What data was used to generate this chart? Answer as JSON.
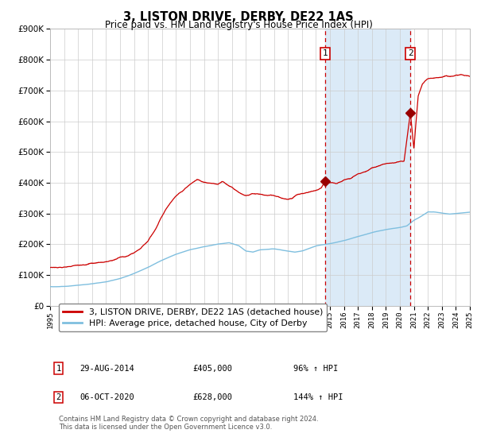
{
  "title": "3, LISTON DRIVE, DERBY, DE22 1AS",
  "subtitle": "Price paid vs. HM Land Registry's House Price Index (HPI)",
  "footer": "Contains HM Land Registry data © Crown copyright and database right 2024.\nThis data is licensed under the Open Government Licence v3.0.",
  "legend_line1": "3, LISTON DRIVE, DERBY, DE22 1AS (detached house)",
  "legend_line2": "HPI: Average price, detached house, City of Derby",
  "annotation1_date": "29-AUG-2014",
  "annotation1_price": "£405,000",
  "annotation1_hpi": "96% ↑ HPI",
  "annotation2_date": "06-OCT-2020",
  "annotation2_price": "£628,000",
  "annotation2_hpi": "144% ↑ HPI",
  "hpi_color": "#7fbfdf",
  "price_color": "#cc0000",
  "dot_color": "#990000",
  "dashed_color": "#cc0000",
  "background_color": "#ffffff",
  "shade_color": "#dbeaf7",
  "grid_color": "#cccccc",
  "ylim": [
    0,
    900000
  ],
  "yticks": [
    0,
    100000,
    200000,
    300000,
    400000,
    500000,
    600000,
    700000,
    800000,
    900000
  ],
  "year_start": 1995,
  "year_end": 2025,
  "annotation1_year": 2014.67,
  "annotation2_year": 2020.75,
  "annotation1_value": 405000,
  "annotation2_value": 628000,
  "hpi_pts_x": [
    1995.0,
    1996.0,
    1997.0,
    1998.0,
    1999.0,
    2000.0,
    2001.0,
    2002.0,
    2003.0,
    2004.0,
    2005.0,
    2006.0,
    2007.0,
    2007.8,
    2008.5,
    2009.0,
    2009.5,
    2010.0,
    2011.0,
    2012.0,
    2012.5,
    2013.0,
    2014.0,
    2015.0,
    2016.0,
    2017.0,
    2018.0,
    2019.0,
    2020.0,
    2020.5,
    2021.0,
    2021.5,
    2022.0,
    2022.5,
    2023.0,
    2023.5,
    2024.0,
    2024.5,
    2025.0
  ],
  "hpi_pts_y": [
    62000,
    63000,
    67000,
    72000,
    78000,
    88000,
    105000,
    125000,
    148000,
    168000,
    182000,
    192000,
    200000,
    205000,
    195000,
    178000,
    175000,
    182000,
    185000,
    178000,
    175000,
    178000,
    195000,
    202000,
    212000,
    225000,
    238000,
    248000,
    255000,
    260000,
    278000,
    290000,
    305000,
    305000,
    302000,
    298000,
    300000,
    302000,
    305000
  ],
  "price_pts_x": [
    1995.0,
    1995.5,
    1996.0,
    1996.5,
    1997.0,
    1997.5,
    1998.0,
    1998.5,
    1999.0,
    1999.5,
    2000.0,
    2000.5,
    2001.0,
    2001.5,
    2002.0,
    2002.5,
    2003.0,
    2003.5,
    2004.0,
    2004.5,
    2005.0,
    2005.5,
    2006.0,
    2006.5,
    2007.0,
    2007.3,
    2007.6,
    2008.0,
    2008.5,
    2009.0,
    2009.3,
    2009.6,
    2010.0,
    2010.5,
    2011.0,
    2011.5,
    2012.0,
    2012.3,
    2012.6,
    2013.0,
    2013.5,
    2014.0,
    2014.4,
    2014.67,
    2015.0,
    2015.5,
    2016.0,
    2016.5,
    2017.0,
    2017.5,
    2018.0,
    2018.5,
    2019.0,
    2019.5,
    2020.0,
    2020.3,
    2020.75,
    2021.0,
    2021.3,
    2021.6,
    2022.0,
    2022.3,
    2022.6,
    2023.0,
    2023.3,
    2023.6,
    2024.0,
    2024.3,
    2024.6,
    2025.0
  ],
  "price_pts_y": [
    125000,
    124000,
    127000,
    128000,
    132000,
    133000,
    138000,
    140000,
    143000,
    148000,
    158000,
    162000,
    172000,
    188000,
    210000,
    248000,
    292000,
    330000,
    358000,
    375000,
    395000,
    410000,
    400000,
    398000,
    395000,
    405000,
    395000,
    385000,
    368000,
    358000,
    362000,
    365000,
    363000,
    360000,
    358000,
    352000,
    345000,
    348000,
    360000,
    365000,
    370000,
    375000,
    383000,
    405000,
    400000,
    398000,
    408000,
    415000,
    428000,
    435000,
    448000,
    455000,
    462000,
    465000,
    468000,
    472000,
    628000,
    510000,
    680000,
    720000,
    738000,
    740000,
    742000,
    742000,
    748000,
    745000,
    750000,
    752000,
    748000,
    750000
  ]
}
